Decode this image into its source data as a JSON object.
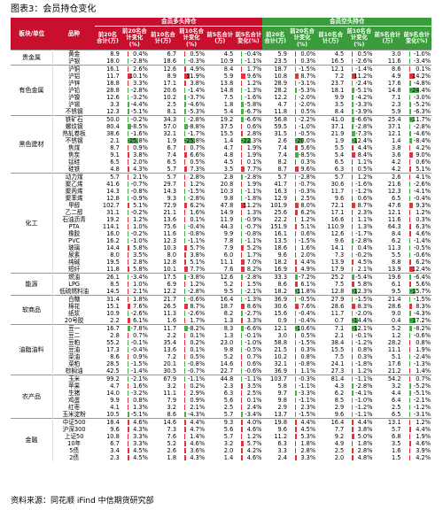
{
  "title": "图表3：会员持仓变化",
  "source": "资料来源：同花顺 iFind 中信期货研究部",
  "headers": {
    "sector": "板块/单位",
    "product": "品种",
    "long_group": "会员多头持仓",
    "short_group": "会员空头持仓",
    "long_cols": [
      "前20名合计(万)",
      "前20名合计变化(%)",
      "前10名合计(万)",
      "前10名合计变化(%)",
      "前5名合计(万)",
      "前5名合计变化(%)"
    ],
    "short_cols": [
      "前20名合计(万)",
      "前20名合计变化(%)",
      "前10名合计(万)",
      "前10名合计变化(%)",
      "前5名合计(万)",
      "前5名合计变化(%)"
    ]
  },
  "colors": {
    "header_red": "#C8102E",
    "header_green": "#3A9C3A",
    "pos_bar": "#E8303A",
    "neg_bar": "#49B049"
  },
  "groups": [
    {
      "name": "贵金属",
      "rows": [
        [
          "黄金",
          "8.9",
          "0.4%",
          "6.7",
          "0.5%",
          "4.5",
          "-0.4%",
          "5.9",
          "0.0%",
          "4.5",
          "0.5%",
          "3.0",
          "-1.0%"
        ],
        [
          "沪银",
          "18.0",
          "-2.8%",
          "18.6",
          "-0.3%",
          "10.9",
          "-1.1%",
          "23.5",
          "0.3%",
          "16.5",
          "-2.6%",
          "11.6",
          "-3.4%"
        ]
      ]
    },
    {
      "name": "有色金属",
      "rows": [
        [
          "沪铜",
          "16.1",
          "2.6%",
          "12.6",
          "4.9%",
          "8.4",
          "1.7%",
          "18.7",
          "-1.5%",
          "12.1",
          "-1.4%",
          "8.6",
          "0.1%"
        ],
        [
          "沪铝",
          "11.7",
          "10.1%",
          "8.9",
          "11.9%",
          "5.9",
          "9.6%",
          "10.8",
          "8.7%",
          "7.2",
          "11.2%",
          "4.9",
          "14.2%"
        ],
        [
          "沪锌",
          "18.8",
          "3.3%",
          "17.1",
          "3.8%",
          "13.8",
          "1.2%",
          "28.9",
          "-3.1%",
          "23.7",
          "-2.4%",
          "17.6",
          "-4.8%"
        ],
        [
          "沪铅",
          "28.8",
          "-2.8%",
          "20.6",
          "-1.4%",
          "14.8",
          "-1.3%",
          "28.2",
          "-5.3%",
          "18.1",
          "-5.1%",
          "14.8",
          "-24.4%"
        ],
        [
          "沪镍",
          "12.6",
          "-3.2%",
          "10.2",
          "-3.7%",
          "7.5",
          "-1.6%",
          "12.2",
          "-2.0%",
          "9.9",
          "-4.2%",
          "7.1",
          "-3.0%"
        ],
        [
          "沪锡",
          "3.3",
          "-4.4%",
          "2.5",
          "-4.6%",
          "1.8",
          "-5.8%",
          "4.7",
          "-2.0%",
          "3.5",
          "-3.3%",
          "2.3",
          "-5.2%"
        ],
        [
          "不锈钢",
          "12.3",
          "-5.1%",
          "8.1",
          "-5.3%",
          "5.4",
          "-6.7%",
          "11.8",
          "0.5%",
          "8.4",
          "-3.9%",
          "5.9",
          "-6.3%"
        ]
      ]
    },
    {
      "name": "黑色建材",
      "rows": [
        [
          "铁矿石",
          "50.0",
          "-0.2%",
          "34.3",
          "-2.8%",
          "19.2",
          "-6.6%",
          "56.8",
          "-2.2%",
          "41.0",
          "-6.6%",
          "25.4",
          "-11.7%"
        ],
        [
          "螺纹钢",
          "80.4",
          "-8.5%",
          "57.0",
          "-8.8%",
          "37.5",
          "0.6%",
          "59.5",
          "-1.0%",
          "37.1",
          "-2.8%",
          "37.1",
          "-2.8%"
        ],
        [
          "热轧卷板",
          "38.6",
          "-1.6%",
          "32.1",
          "-1.7%",
          "15.5",
          "2.8%",
          "31.5",
          "-0.5%",
          "21.9",
          "-7.3%",
          "12.1",
          "-4.6%"
        ],
        [
          "不锈钢",
          "2.1",
          "-25.8%",
          "1.9",
          "-25.8%",
          "1.4",
          "-22.3%",
          "2.6",
          "-20.0%",
          "1.9",
          "-12.4%",
          "1.4",
          "-8.4%"
        ],
        [
          "焦煤",
          "8.7",
          "0.9%",
          "6.7",
          "0.7%",
          "4.7",
          "1.9%",
          "7.4",
          "5.6%",
          "5.5",
          "4.4%",
          "3.8",
          "4.2%"
        ],
        [
          "焦炭",
          "9.1",
          "3.8%",
          "7.4",
          "6.6%",
          "4.8",
          "1.9%",
          "7.4",
          "-8.5%",
          "5.4",
          "8.4%",
          "3.6",
          "9.0%"
        ],
        [
          "锰硅",
          "6.5",
          "2.0%",
          "6.5",
          "0.5%",
          "4.5",
          "0.1%",
          "8.2",
          "0.3%",
          "6.5",
          "1.1%",
          "4.2",
          "0.6%"
        ],
        [
          "硅铁",
          "4.8",
          "4.3%",
          "5.7",
          "7.3%",
          "3.5",
          "7.7%",
          "8.7",
          "9.6%",
          "6.3",
          "0.5%",
          "4.2",
          "5.1%"
        ]
      ]
    },
    {
      "name": "化工",
      "rows": [
        [
          "动力煤",
          "5.7",
          "2.1%",
          "5.7",
          "2.8%",
          "2.8",
          "-2.8%",
          "5.7",
          "-2.8%",
          "5.7",
          "1.2%",
          "2.6",
          "4.1%"
        ],
        [
          "聚乙烯",
          "41.6",
          "-0.7%",
          "29.7",
          "1.2%",
          "20.8",
          "1.9%",
          "41.7",
          "-0.7%",
          "30.6",
          "-1.6%",
          "21.6",
          "-2.6%"
        ],
        [
          "聚丙烯",
          "14.3",
          "-0.8%",
          "14.3",
          "-1.5%",
          "10.3",
          "-1.1%",
          "16.3",
          "-0.3%",
          "11.7",
          "-1.2%",
          "12.3",
          "-4.1%"
        ],
        [
          "聚苯烯",
          "12.8",
          "-0.9%",
          "9.3",
          "-2.8%",
          "9.8",
          "-1.8%",
          "12.9",
          "2.5%",
          "9.6",
          "0.6%",
          "6.5",
          "-0.4%"
        ],
        [
          "甲醇",
          "102.7",
          "5.1%",
          "72.9",
          "6.2%",
          "47.8",
          "11.2%",
          "101.9",
          "8.0%",
          "72.1",
          "8.7%",
          "47.6",
          "9.3%"
        ],
        [
          "乙二醇",
          "31.1",
          "-0.2%",
          "21.1",
          "1.6%",
          "14.9",
          "1.3%",
          "25.6",
          "6.2%",
          "17.1",
          "2.3%",
          "12.1",
          "1.2%"
        ],
        [
          "石油沥青",
          "19.2",
          "1.2%",
          "13.6",
          "0.1%",
          "11.9",
          "-0.9%",
          "22.2",
          "1.2%",
          "16.6",
          "1.1%",
          "11.6",
          "0.3%"
        ],
        [
          "PTA",
          "114.1",
          "1.0%",
          "75.6",
          "-0.4%",
          "44.3",
          "-0.7%",
          "151.9",
          "5.1%",
          "110.9",
          "1.3%",
          "64.3",
          "6.3%"
        ],
        [
          "橡胶",
          "16.0",
          "-0.2%",
          "11.6",
          "-0.8%",
          "9.9",
          "-0.8%",
          "16.1",
          "0.6%",
          "12.6",
          "-1.7%",
          "8.4",
          "4.6%"
        ],
        [
          "PVC",
          "16.2",
          "-1.0%",
          "12.3",
          "-1.1%",
          "7.8",
          "-1.1%",
          "13.5",
          "-1.5%",
          "9.6",
          "-2.8%",
          "6.2",
          "-1.4%"
        ],
        [
          "玻璃",
          "14.4",
          "5.8%",
          "10.3",
          "5.7%",
          "7.9",
          "5.2%",
          "18.6",
          "1.6%",
          "14.1",
          "0.4%",
          "11.3",
          "-0.5%"
        ],
        [
          "尿素",
          "8.0",
          "3.5%",
          "8.0",
          "3.8%",
          "6.0",
          "1.7%",
          "9.6",
          "2.0%",
          "7.3",
          "-0.2%",
          "5.5",
          "-0.6%"
        ],
        [
          "纯碱",
          "19.5",
          "2.8%",
          "12.8",
          "5.1%",
          "11.1",
          "7.0%",
          "18.2",
          "4.4%",
          "13.9",
          "4.5%",
          "8.8",
          "6.2%"
        ],
        [
          "短纤",
          "11.8",
          "5.8%",
          "10.1",
          "7.7%",
          "7.6",
          "8.2%",
          "16.9",
          "4.9%",
          "17.9",
          "2.1%",
          "13.9",
          "12.4%"
        ]
      ]
    },
    {
      "name": "能源",
      "rows": [
        [
          "燃油",
          "26.1",
          "-3.4%",
          "17.5",
          "-3.8%",
          "12.6",
          "-2.8%",
          "33.3",
          "-7.2%",
          "25.2",
          "-5.4%",
          "19.6",
          "-6.4%"
        ],
        [
          "LPG",
          "8.5",
          "1.0%",
          "6.9",
          "1.2%",
          "5.2",
          "1.5%",
          "8.6",
          "6.1%",
          "7.5",
          "5.8%",
          "6.1",
          "5.6%"
        ],
        [
          "低硫燃料油",
          "14.5",
          "2.1%",
          "12.2",
          "-2.8%",
          "9.5",
          "-2.1%",
          "18.2",
          "-11.8%",
          "12.8",
          "-12.3%",
          "9.5",
          "-15.7%"
        ]
      ]
    },
    {
      "name": "软商品",
      "rows": [
        [
          "白糖",
          "31.4",
          "1.8%",
          "21.7",
          "-0.6%",
          "16.4",
          "-1.3%",
          "36.9",
          "-0.5%",
          "27.9",
          "-1.5%",
          "21.4",
          "-1.5%"
        ],
        [
          "棉花",
          "15.1",
          "7.6%",
          "26.5",
          "8.7%",
          "18.7",
          "8.6%",
          "30.6",
          "7.6%",
          "28.6",
          "8.3%",
          "28.6",
          "8.3%"
        ],
        [
          "纸浆",
          "10.9",
          "-2.6%",
          "11.3",
          "-2.6%",
          "8.2",
          "-2.7%",
          "15.6",
          "-0.4%",
          "11.7",
          "-2.0%",
          "9.0",
          "-4.3%"
        ],
        [
          "20号胶",
          "2.2",
          "6.1%",
          "1.6",
          "1.7%",
          "1.3",
          "3.3%",
          "0.9",
          "-0.4%",
          "0.7",
          "-14.4%",
          "0.4",
          "-17.2%"
        ]
      ]
    },
    {
      "name": "油脂油料",
      "rows": [
        [
          "豆一",
          "16.7",
          "-7.8%",
          "11.7",
          "-8.2%",
          "8.3",
          "-6.6%",
          "12.1",
          "-10.6%",
          "7.1",
          "-12.1%",
          "5.2",
          "-8.2%"
        ],
        [
          "豆二",
          "2.8",
          "0.7%",
          "2.2",
          "0.1%",
          "1.3",
          "-0.1%",
          "3.0",
          "0.5%",
          "2.1",
          "-0.1%",
          "1.2",
          "-0.6%"
        ],
        [
          "豆粕",
          "55.2",
          "-0.1%",
          "35.4",
          "0.2%",
          "23.0",
          "-1.0%",
          "58.8",
          "-1.5%",
          "38.4",
          "-1.2%",
          "28.2",
          "0.8%"
        ],
        [
          "豆油",
          "17.3",
          "-0.4%",
          "13.6",
          "0.1%",
          "9.8",
          "-0.5%",
          "21.5",
          "0.3%",
          "15.5",
          "0.8%",
          "11.1",
          "1.9%"
        ],
        [
          "菜油",
          "8.6",
          "0.9%",
          "7.2",
          "0.5%",
          "5.2",
          "0.7%",
          "10.2",
          "0.8%",
          "7.5",
          "0.3%",
          "5.1",
          "-2.4%"
        ],
        [
          "菜粕",
          "28.5",
          "-1.5%",
          "20.1",
          "-0.8%",
          "14.6",
          "0.6%",
          "32.1",
          "-0.8%",
          "24.1",
          "-1.8%",
          "17.6",
          "-1.3%"
        ],
        [
          "棕榈油",
          "42.5",
          "-1.4%",
          "30.5",
          "-0.7%",
          "22.7",
          "-0.6%",
          "36.9",
          "1.1%",
          "27.3",
          "1.2%",
          "21.2",
          "1.4%"
        ]
      ]
    },
    {
      "name": "农产品",
      "rows": [
        [
          "玉米",
          "99.2",
          "-2.1%",
          "67.9",
          "-1.1%",
          "44.8",
          "-1.1%",
          "103.7",
          "-0.3%",
          "81.4",
          "-1.1%",
          "54.2",
          "0.7%"
        ],
        [
          "苹果",
          "4.7",
          "1.6%",
          "3.2",
          "0.2%",
          "2.3",
          "3.5%",
          "5.8",
          "-1.1%",
          "4.3",
          "-2.8%",
          "3.2",
          "-5.2%"
        ],
        [
          "生猪",
          "14.0",
          "-3.2%",
          "11.1",
          "2.9%",
          "6.3",
          "2.5%",
          "9.7",
          "-3.3%",
          "6.2",
          "-4.1%",
          "4.4",
          "-5.1%"
        ],
        [
          "鸡蛋",
          "9.9",
          "0.8%",
          "7.9",
          "0.9%",
          "5.6",
          "0.1%",
          "9.8",
          "-1.1%",
          "8.5",
          "-1.0%",
          "6.4",
          "-2.1%"
        ],
        [
          "红枣",
          "4.1",
          "1.3%",
          "3.2",
          "2.1%",
          "2.5",
          "2.4%",
          "2.9",
          "2.3%",
          "2.9",
          "-1.2%",
          "2.5",
          "-1.2%"
        ],
        [
          "玉米淀粉",
          "10.5",
          "-5.1%",
          "8.6",
          "-4.3%",
          "5.7",
          "-3.4%",
          "13.7",
          "-1.5%",
          "9.6",
          "-1.1%",
          "6.5",
          "-3.1%"
        ]
      ]
    },
    {
      "name": "金融",
      "rows": [
        [
          "中证500",
          "18.4",
          "4.6%",
          "14.6",
          "4.4%",
          "9.3",
          "4.0%",
          "19.8",
          "4.4%",
          "16.4",
          "4.4%",
          "13.1",
          "1.2%"
        ],
        [
          "沪深300",
          "9.6",
          "4.3%",
          "7.3",
          "4.7%",
          "5.6",
          "4.6%",
          "9.6",
          "4.5%",
          "7.7",
          "3.8%",
          "5.7",
          "4.4%"
        ],
        [
          "上证50",
          "10.8",
          "3.3%",
          "7.6",
          "1.4%",
          "5.7",
          "1.2%",
          "11.2",
          "5.3%",
          "9.2",
          "5.0%",
          "6.8",
          "1.9%"
        ],
        [
          "10年",
          "6.7",
          "3.3%",
          "5.2",
          "4.6%",
          "3.2",
          "5.7%",
          "6.3",
          "1.8%",
          "4.9",
          "1.8%",
          "3.5",
          "4.6%"
        ],
        [
          "5债",
          "3.4",
          "4.5%",
          "2.6",
          "3.6%",
          "2.0",
          "4.2%",
          "3.3",
          "2.8%",
          "2.5",
          "2.8%",
          "1.6",
          "3.9%"
        ],
        [
          "2债",
          "2.3",
          "4.5%",
          "1.8",
          "4.3%",
          "1.4",
          "4.6%",
          "2.4",
          "3.3%",
          "2.0",
          "4.8%",
          "1.5",
          "4.2%"
        ]
      ]
    }
  ]
}
